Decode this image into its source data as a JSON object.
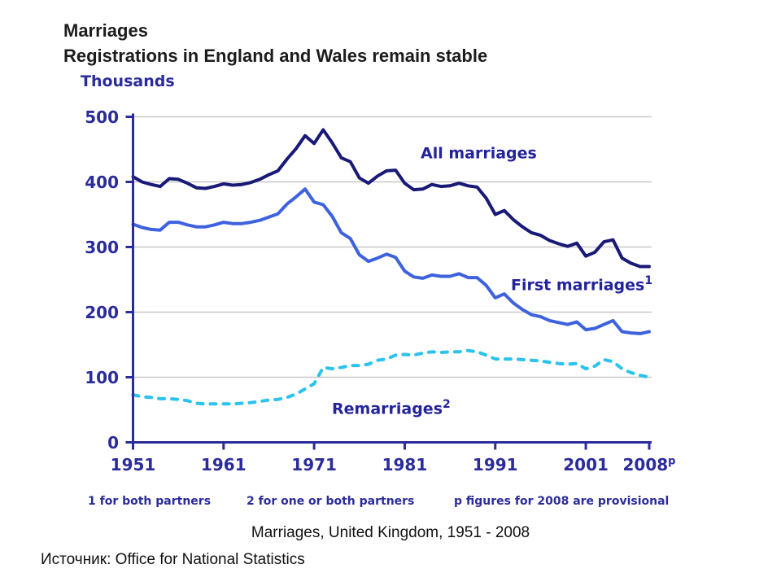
{
  "page": {
    "title_line1": "Marriages",
    "title_line2": "Registrations in England and Wales remain stable",
    "caption": "Marriages, United Kingdom, 1951 - 2008",
    "source": "Источник: Office for National Statistics"
  },
  "chart_data": {
    "type": "line",
    "title": "Marriages, United Kingdom, 1951 - 2008",
    "unit_label": "Thousands",
    "xlabel": "",
    "ylabel": "Thousands",
    "ylim": [
      0,
      500
    ],
    "grid": true,
    "legend_position": "inline-labels",
    "axis_color": "#2b2b9b",
    "grid_color": "#c8c8c8",
    "y_ticks": [
      0,
      100,
      200,
      300,
      400,
      500
    ],
    "x_ticks": [
      {
        "label": "1951",
        "year": 1951
      },
      {
        "label": "1961",
        "year": 1961
      },
      {
        "label": "1971",
        "year": 1971
      },
      {
        "label": "1981",
        "year": 1981
      },
      {
        "label": "1991",
        "year": 1991
      },
      {
        "label": "2001",
        "year": 2001
      },
      {
        "label": "2008",
        "year": 2008,
        "sup": "p"
      }
    ],
    "x": [
      1951,
      1952,
      1953,
      1954,
      1955,
      1956,
      1957,
      1958,
      1959,
      1960,
      1961,
      1962,
      1963,
      1964,
      1965,
      1966,
      1967,
      1968,
      1969,
      1970,
      1971,
      1972,
      1973,
      1974,
      1975,
      1976,
      1977,
      1978,
      1979,
      1980,
      1981,
      1982,
      1983,
      1984,
      1985,
      1986,
      1987,
      1988,
      1989,
      1990,
      1991,
      1992,
      1993,
      1994,
      1995,
      1996,
      1997,
      1998,
      1999,
      2000,
      2001,
      2002,
      2003,
      2004,
      2005,
      2006,
      2007,
      2008
    ],
    "series": [
      {
        "name": "All marriages",
        "sup": "",
        "color": "#191977",
        "style": "solid",
        "values": [
          408,
          400,
          396,
          393,
          405,
          404,
          398,
          391,
          390,
          393,
          397,
          395,
          396,
          399,
          404,
          411,
          417,
          435,
          451,
          471,
          459,
          480,
          460,
          437,
          431,
          406,
          398,
          409,
          417,
          418,
          398,
          388,
          389,
          396,
          393,
          394,
          398,
          394,
          392,
          375,
          350,
          356,
          342,
          331,
          322,
          318,
          310,
          305,
          301,
          306,
          286,
          292,
          308,
          311,
          283,
          275,
          270,
          270
        ]
      },
      {
        "name": "First marriages",
        "sup": "1",
        "color": "#3E62DE",
        "style": "solid",
        "values": [
          335,
          330,
          327,
          326,
          338,
          338,
          334,
          331,
          331,
          334,
          338,
          336,
          336,
          338,
          341,
          346,
          351,
          366,
          377,
          389,
          369,
          365,
          347,
          322,
          313,
          288,
          278,
          283,
          289,
          284,
          263,
          254,
          252,
          257,
          255,
          255,
          259,
          253,
          253,
          241,
          222,
          228,
          214,
          204,
          196,
          193,
          187,
          184,
          181,
          185,
          173,
          175,
          181,
          187,
          170,
          168,
          167,
          170
        ]
      },
      {
        "name": "Remarriages",
        "sup": "2",
        "color": "#2BC2EE",
        "style": "dashed",
        "values": [
          73,
          70,
          69,
          67,
          67,
          66,
          64,
          60,
          59,
          59,
          59,
          59,
          60,
          61,
          63,
          65,
          66,
          69,
          74,
          82,
          90,
          115,
          113,
          115,
          118,
          118,
          120,
          126,
          128,
          134,
          135,
          134,
          137,
          139,
          138,
          139,
          139,
          141,
          139,
          134,
          128,
          128,
          128,
          127,
          126,
          125,
          123,
          121,
          120,
          121,
          113,
          117,
          127,
          124,
          113,
          107,
          103,
          100
        ]
      }
    ],
    "footnotes": [
      "1 for both partners",
      "2 for one or both partners",
      "p figures for 2008 are provisional"
    ]
  }
}
